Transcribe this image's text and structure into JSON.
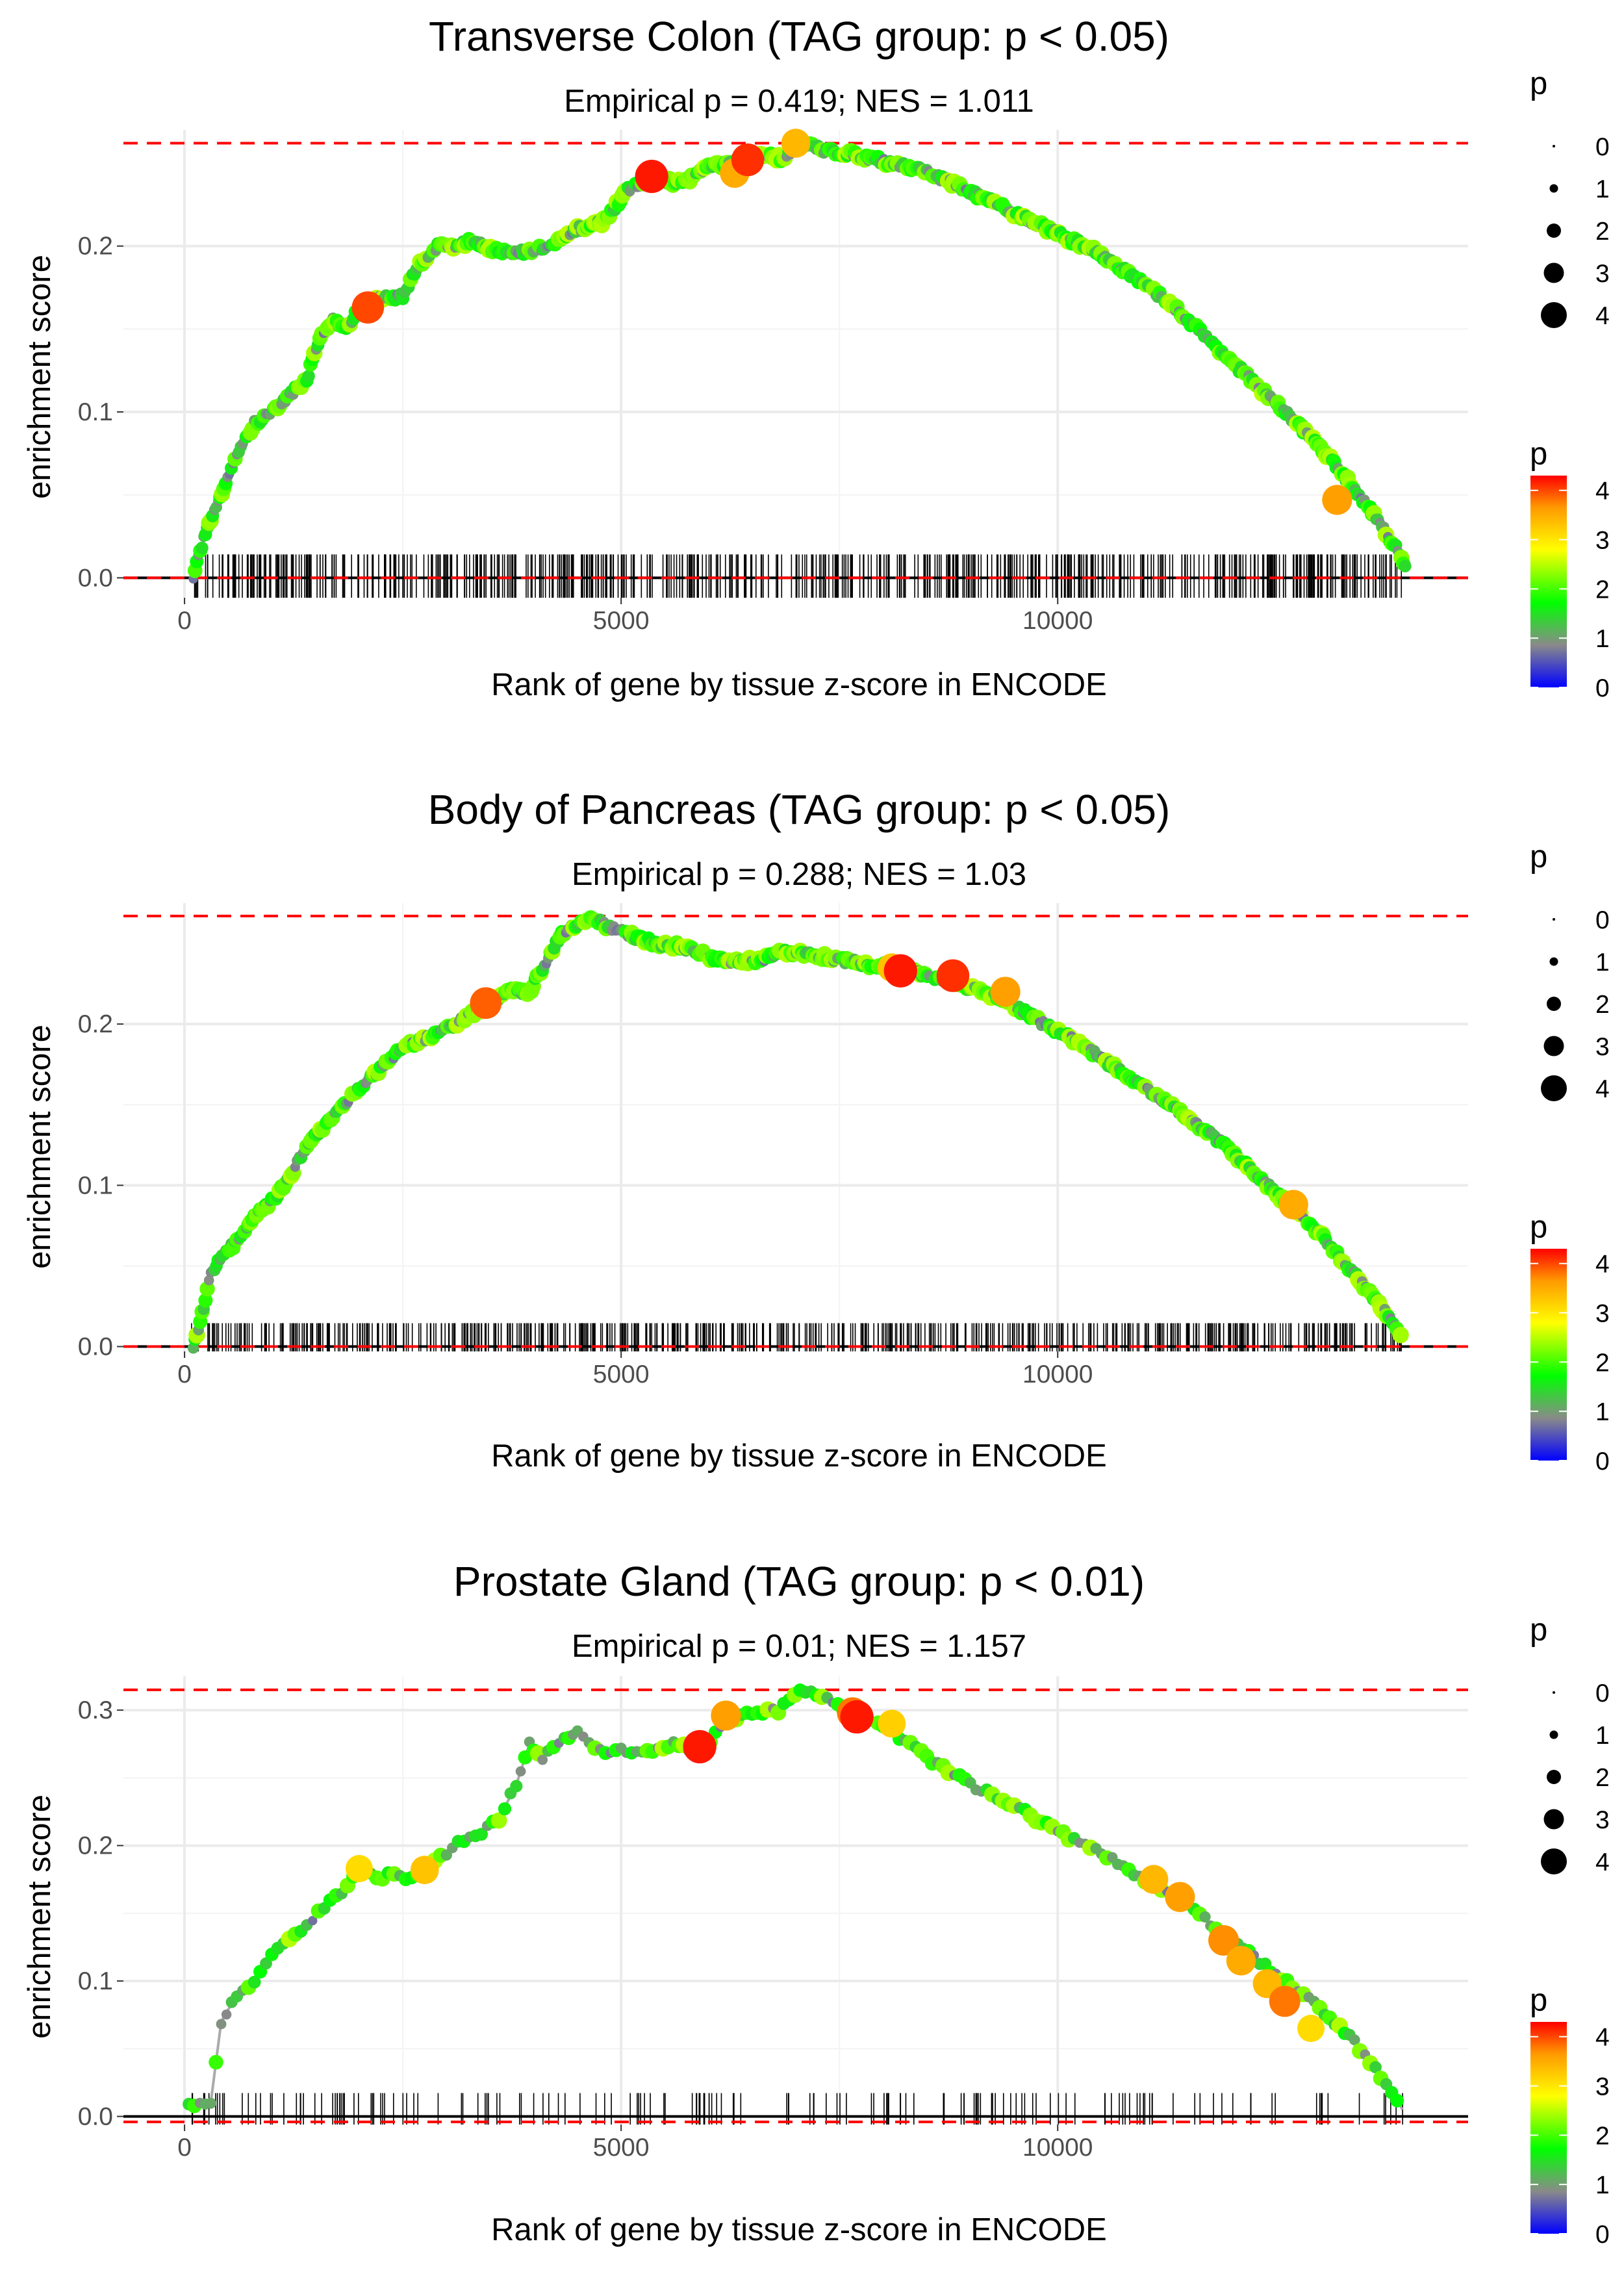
{
  "figure": {
    "xlabel": "Rank of gene by tissue z-score in ENCODE",
    "ylabel": "enrichment score",
    "size_legend": {
      "title": "p",
      "labels": [
        "0",
        "1",
        "2",
        "3",
        "4"
      ],
      "values": [
        0,
        1,
        2,
        3,
        4
      ]
    },
    "color_legend": {
      "title": "p",
      "labels": [
        "0",
        "1",
        "2",
        "3",
        "4"
      ],
      "min": 0,
      "max": 4.3,
      "stops": [
        [
          "#0000ff",
          0
        ],
        [
          "#8a8a8a",
          0.2
        ],
        [
          "#00ff00",
          0.4
        ],
        [
          "#ffff00",
          0.65
        ],
        [
          "#ff9900",
          0.85
        ],
        [
          "#ff0000",
          1
        ]
      ]
    },
    "colors": {
      "reference_line": "#ff0000",
      "curve": "#aaaaaa",
      "grid": "#ebebeb",
      "axis_text": "#4d4d4d",
      "rug": "#000000"
    }
  },
  "chart_data": [
    {
      "type": "line",
      "title": "Transverse Colon (TAG group: p < 0.05)",
      "subtitle": "Empirical p = 0.419; NES = 1.011",
      "xlim": [
        -700,
        14700
      ],
      "ylim": [
        -0.012,
        0.27
      ],
      "xticks": [
        0,
        5000,
        10000
      ],
      "xtick_labels": [
        "0",
        "5000",
        "10000"
      ],
      "yticks": [
        0.0,
        0.1,
        0.2
      ],
      "ytick_labels": [
        "0.0",
        "0.1",
        "0.2"
      ],
      "max_es": 0.262,
      "min_es": 0.0,
      "rug_density": "dense",
      "x": [
        100,
        200,
        300,
        450,
        600,
        800,
        1000,
        1200,
        1400,
        1550,
        1700,
        1850,
        2000,
        2200,
        2500,
        2700,
        2900,
        3100,
        3300,
        3550,
        3750,
        3950,
        4200,
        4500,
        4800,
        5100,
        5400,
        5700,
        6000,
        6300,
        6600,
        6850,
        7050,
        7300,
        7700,
        8100,
        8500,
        8900,
        9300,
        9700,
        10100,
        10500,
        10900,
        11300,
        11700,
        12100,
        12500,
        12900,
        13300,
        13600,
        13850,
        14000
      ],
      "y": [
        0.0,
        0.02,
        0.035,
        0.055,
        0.075,
        0.093,
        0.1,
        0.11,
        0.12,
        0.145,
        0.155,
        0.15,
        0.162,
        0.168,
        0.17,
        0.19,
        0.2,
        0.2,
        0.203,
        0.198,
        0.195,
        0.197,
        0.2,
        0.21,
        0.215,
        0.235,
        0.24,
        0.238,
        0.248,
        0.25,
        0.255,
        0.253,
        0.262,
        0.258,
        0.255,
        0.25,
        0.245,
        0.235,
        0.225,
        0.215,
        0.205,
        0.195,
        0.18,
        0.165,
        0.145,
        0.125,
        0.105,
        0.085,
        0.06,
        0.04,
        0.02,
        0.005
      ],
      "highlights": [
        {
          "x": 2100,
          "y": 0.163,
          "p": 4.0
        },
        {
          "x": 5350,
          "y": 0.242,
          "p": 4.2
        },
        {
          "x": 6300,
          "y": 0.244,
          "p": 3.5
        },
        {
          "x": 6450,
          "y": 0.252,
          "p": 4.1
        },
        {
          "x": 7000,
          "y": 0.262,
          "p": 3.4
        },
        {
          "x": 13200,
          "y": 0.047,
          "p": 3.6
        }
      ]
    },
    {
      "type": "line",
      "title": "Body of Pancreas (TAG group: p < 0.05)",
      "subtitle": "Empirical p = 0.288; NES = 1.03",
      "xlim": [
        -700,
        14700
      ],
      "ylim": [
        -0.003,
        0.275
      ],
      "xticks": [
        0,
        5000,
        10000
      ],
      "xtick_labels": [
        "0",
        "5000",
        "10000"
      ],
      "yticks": [
        0.0,
        0.1,
        0.2
      ],
      "ytick_labels": [
        "0.0",
        "0.1",
        "0.2"
      ],
      "max_es": 0.267,
      "min_es": 0.0,
      "rug_density": "dense",
      "x": [
        100,
        200,
        300,
        450,
        600,
        800,
        1000,
        1200,
        1400,
        1650,
        1900,
        2200,
        2500,
        2800,
        3100,
        3400,
        3700,
        3950,
        4100,
        4300,
        4500,
        4650,
        4850,
        5100,
        5400,
        5700,
        6000,
        6300,
        6600,
        6900,
        7200,
        7500,
        7800,
        8100,
        8400,
        8700,
        9000,
        9300,
        9600,
        9900,
        10200,
        10600,
        11000,
        11400,
        11800,
        12200,
        12600,
        13000,
        13400,
        13700,
        13950
      ],
      "y": [
        0.0,
        0.02,
        0.045,
        0.058,
        0.065,
        0.08,
        0.09,
        0.105,
        0.125,
        0.14,
        0.155,
        0.17,
        0.185,
        0.192,
        0.2,
        0.21,
        0.22,
        0.22,
        0.235,
        0.255,
        0.262,
        0.267,
        0.26,
        0.255,
        0.25,
        0.248,
        0.242,
        0.238,
        0.24,
        0.245,
        0.243,
        0.24,
        0.237,
        0.235,
        0.232,
        0.228,
        0.222,
        0.217,
        0.208,
        0.198,
        0.19,
        0.175,
        0.16,
        0.145,
        0.13,
        0.11,
        0.09,
        0.07,
        0.045,
        0.025,
        0.005
      ],
      "highlights": [
        {
          "x": 3450,
          "y": 0.213,
          "p": 3.9
        },
        {
          "x": 8100,
          "y": 0.235,
          "p": 3.3
        },
        {
          "x": 8200,
          "y": 0.233,
          "p": 4.2
        },
        {
          "x": 8800,
          "y": 0.23,
          "p": 4.1
        },
        {
          "x": 9400,
          "y": 0.22,
          "p": 3.6
        },
        {
          "x": 12700,
          "y": 0.088,
          "p": 3.5
        }
      ]
    },
    {
      "type": "line",
      "title": "Prostate Gland (TAG group: p < 0.01)",
      "subtitle": "Empirical p = 0.01; NES = 1.157",
      "xlim": [
        -700,
        14700
      ],
      "ylim": [
        -0.006,
        0.325
      ],
      "xticks": [
        0,
        5000,
        10000
      ],
      "xtick_labels": [
        "0",
        "5000",
        "10000"
      ],
      "yticks": [
        0.0,
        0.1,
        0.2,
        0.3
      ],
      "ytick_labels": [
        "0.0",
        "0.1",
        "0.2",
        "0.3"
      ],
      "max_es": 0.315,
      "min_es": -0.004,
      "rug_density": "sparse",
      "x": [
        50,
        300,
        420,
        600,
        800,
        1000,
        1200,
        1400,
        1600,
        1800,
        2000,
        2200,
        2400,
        2600,
        2800,
        3000,
        3200,
        3400,
        3600,
        3800,
        3950,
        4100,
        4350,
        4500,
        4700,
        5000,
        5300,
        5600,
        5900,
        6200,
        6500,
        6800,
        7050,
        7300,
        7600,
        8000,
        8500,
        9000,
        9500,
        10000,
        10500,
        11000,
        11500,
        12000,
        12500,
        13000,
        13400,
        13700,
        13950
      ],
      "y": [
        0.008,
        0.01,
        0.07,
        0.09,
        0.1,
        0.12,
        0.13,
        0.14,
        0.155,
        0.165,
        0.183,
        0.175,
        0.18,
        0.175,
        0.185,
        0.195,
        0.205,
        0.21,
        0.22,
        0.245,
        0.275,
        0.265,
        0.28,
        0.283,
        0.27,
        0.27,
        0.27,
        0.275,
        0.27,
        0.29,
        0.298,
        0.3,
        0.315,
        0.31,
        0.3,
        0.29,
        0.265,
        0.245,
        0.23,
        0.21,
        0.195,
        0.175,
        0.155,
        0.13,
        0.105,
        0.08,
        0.055,
        0.03,
        0.005
      ],
      "highlights": [
        {
          "x": 2000,
          "y": 0.183,
          "p": 3.1
        },
        {
          "x": 2750,
          "y": 0.182,
          "p": 3.3
        },
        {
          "x": 5900,
          "y": 0.273,
          "p": 4.2
        },
        {
          "x": 6200,
          "y": 0.296,
          "p": 3.6
        },
        {
          "x": 7650,
          "y": 0.298,
          "p": 3.8
        },
        {
          "x": 7700,
          "y": 0.295,
          "p": 4.2
        },
        {
          "x": 8100,
          "y": 0.29,
          "p": 3.2
        },
        {
          "x": 11100,
          "y": 0.175,
          "p": 3.4
        },
        {
          "x": 11400,
          "y": 0.162,
          "p": 3.6
        },
        {
          "x": 11900,
          "y": 0.13,
          "p": 3.7
        },
        {
          "x": 12100,
          "y": 0.115,
          "p": 3.5
        },
        {
          "x": 12400,
          "y": 0.098,
          "p": 3.4
        },
        {
          "x": 12600,
          "y": 0.085,
          "p": 3.8
        },
        {
          "x": 12900,
          "y": 0.065,
          "p": 3.1
        }
      ]
    }
  ]
}
